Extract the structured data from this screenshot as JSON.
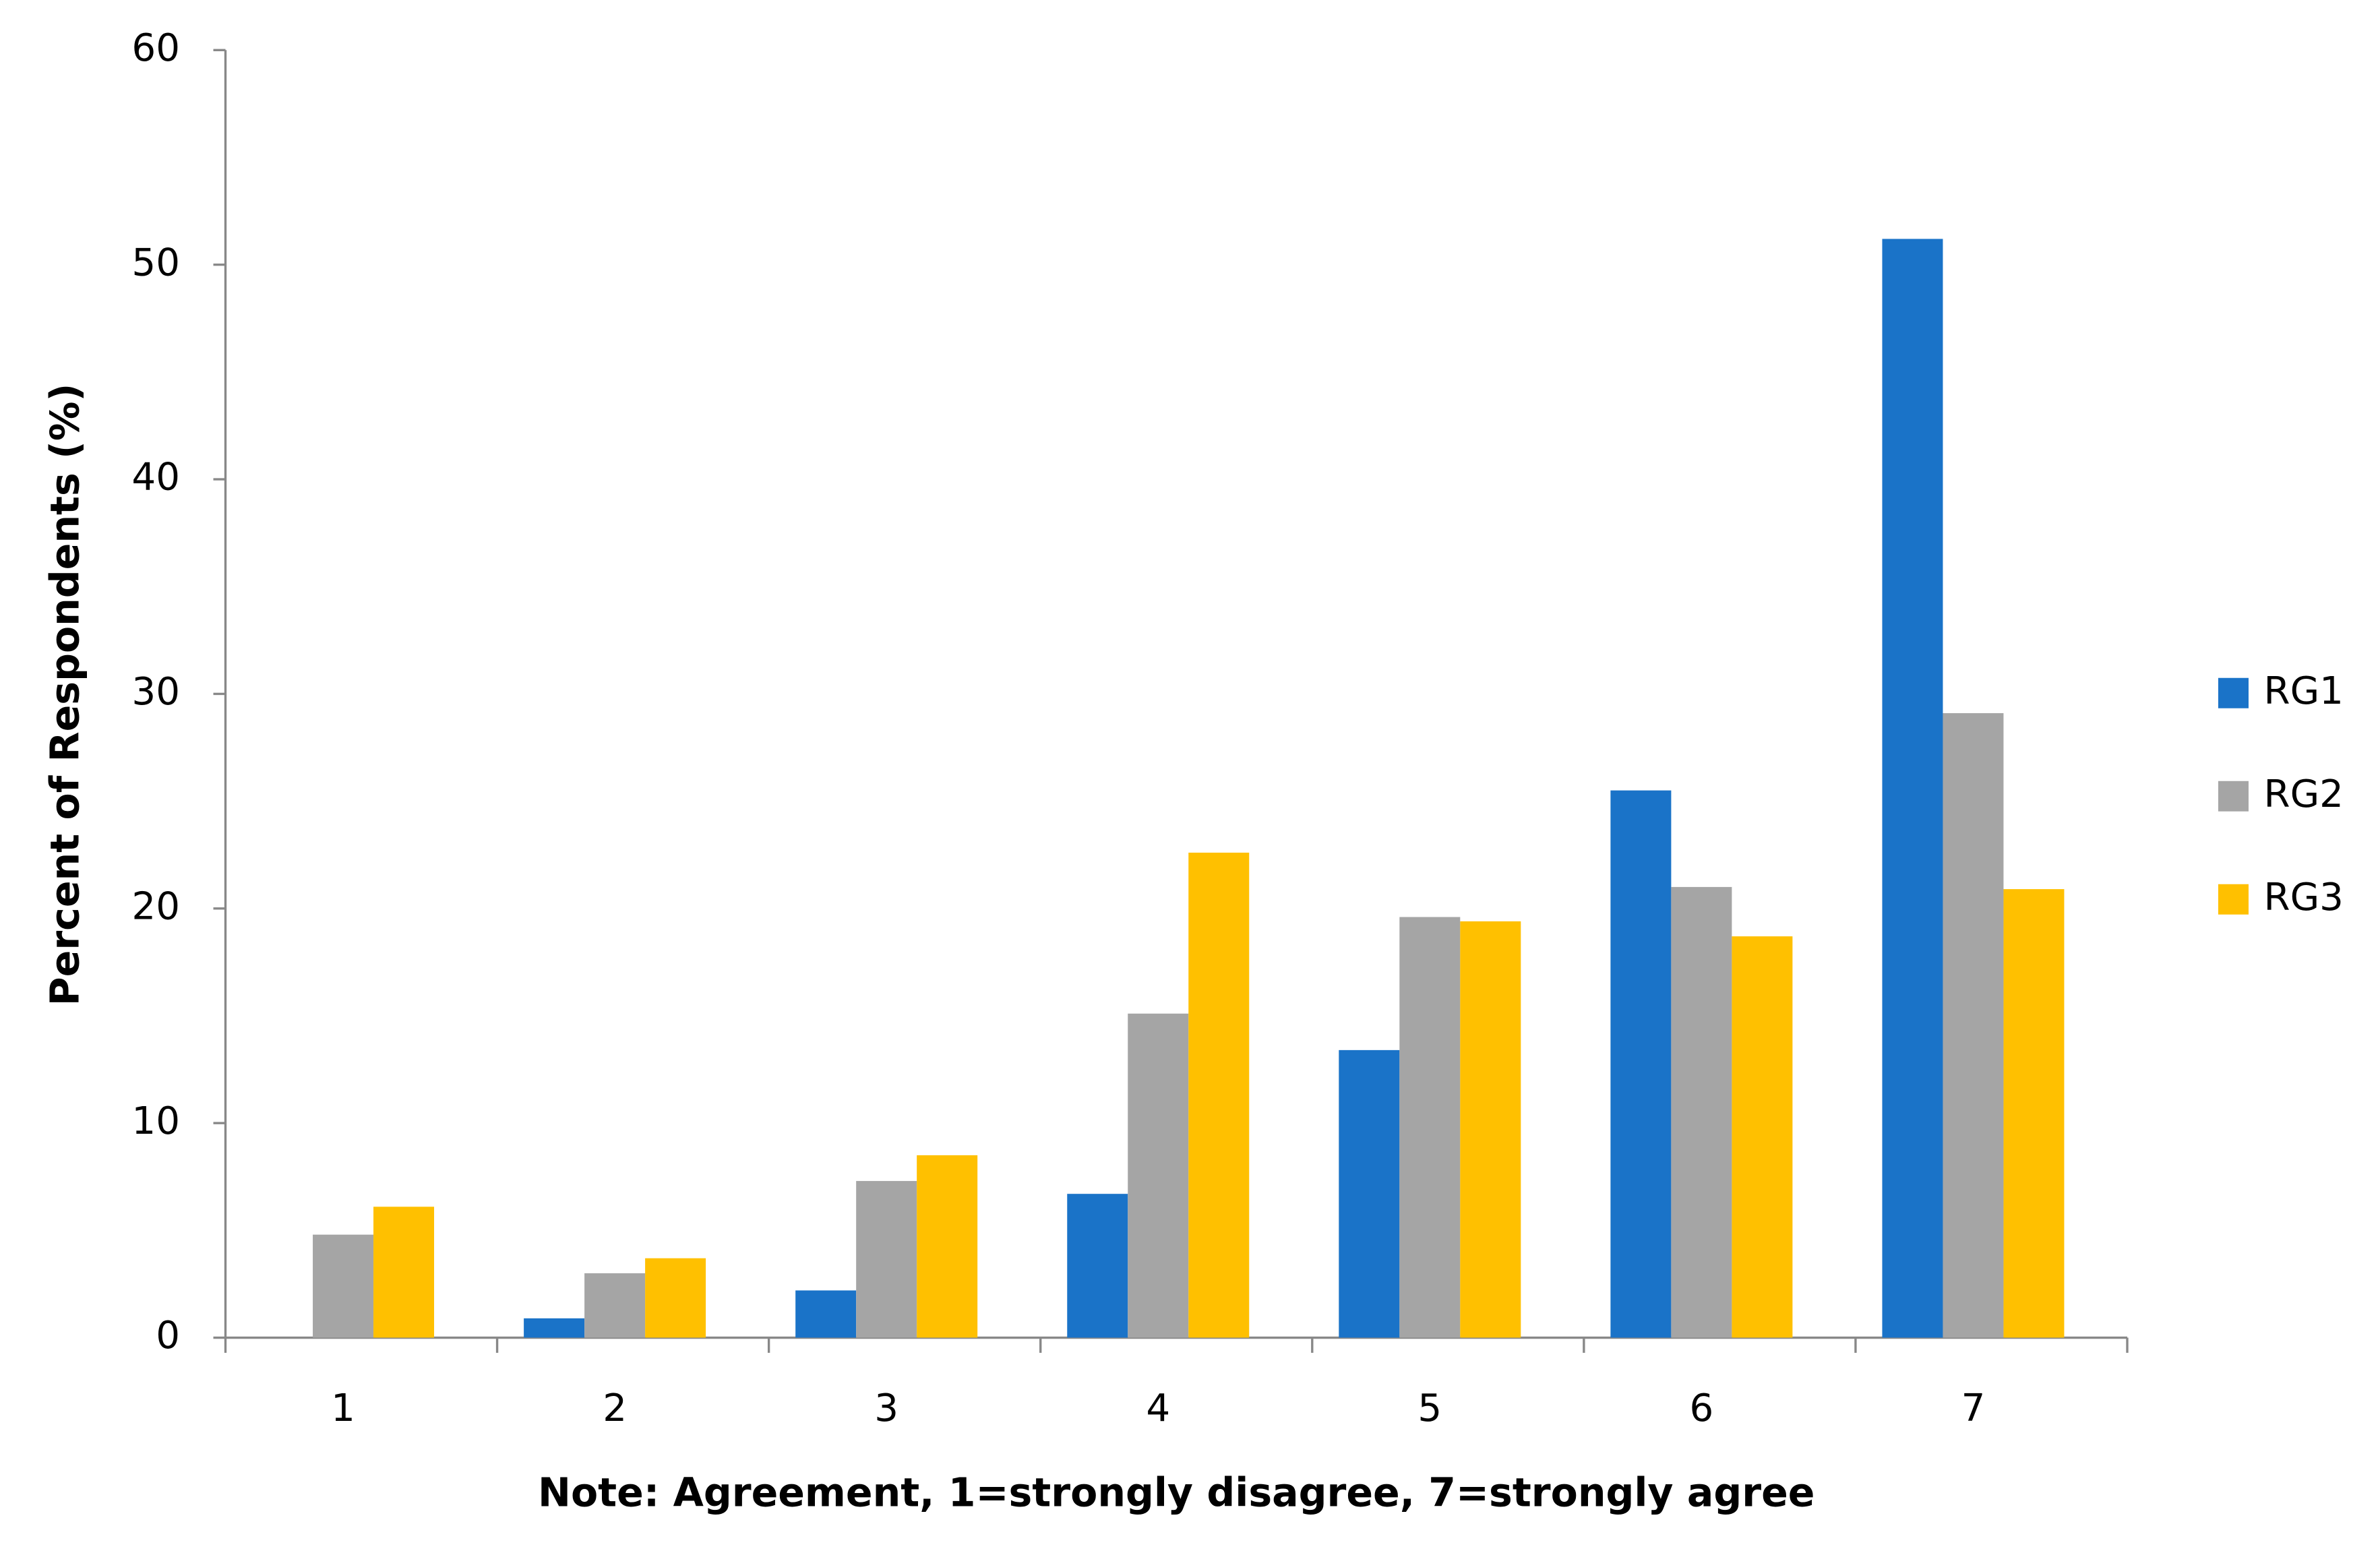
{
  "chart_data": {
    "type": "bar",
    "x_label": "Note: Agreement, 1=strongly disagree, 7=strongly agree",
    "y_label": "Percent of Respondents (%)",
    "categories": [
      "1",
      "2",
      "3",
      "4",
      "5",
      "6",
      "7"
    ],
    "series": [
      {
        "name": "RG1",
        "color": "#1a73c8",
        "values": [
          0,
          0.9,
          2.2,
          6.7,
          13.4,
          25.5,
          51.2
        ]
      },
      {
        "name": "RG2",
        "color": "#a5a5a5",
        "values": [
          4.8,
          3.0,
          7.3,
          15.1,
          19.6,
          21.0,
          29.1
        ]
      },
      {
        "name": "RG3",
        "color": "#ffc000",
        "values": [
          6.1,
          3.7,
          8.5,
          22.6,
          19.4,
          18.7,
          20.9
        ]
      }
    ],
    "ylim": [
      0,
      60
    ],
    "yticks": [
      0,
      10,
      20,
      30,
      40,
      50,
      60
    ],
    "legend": "right"
  }
}
